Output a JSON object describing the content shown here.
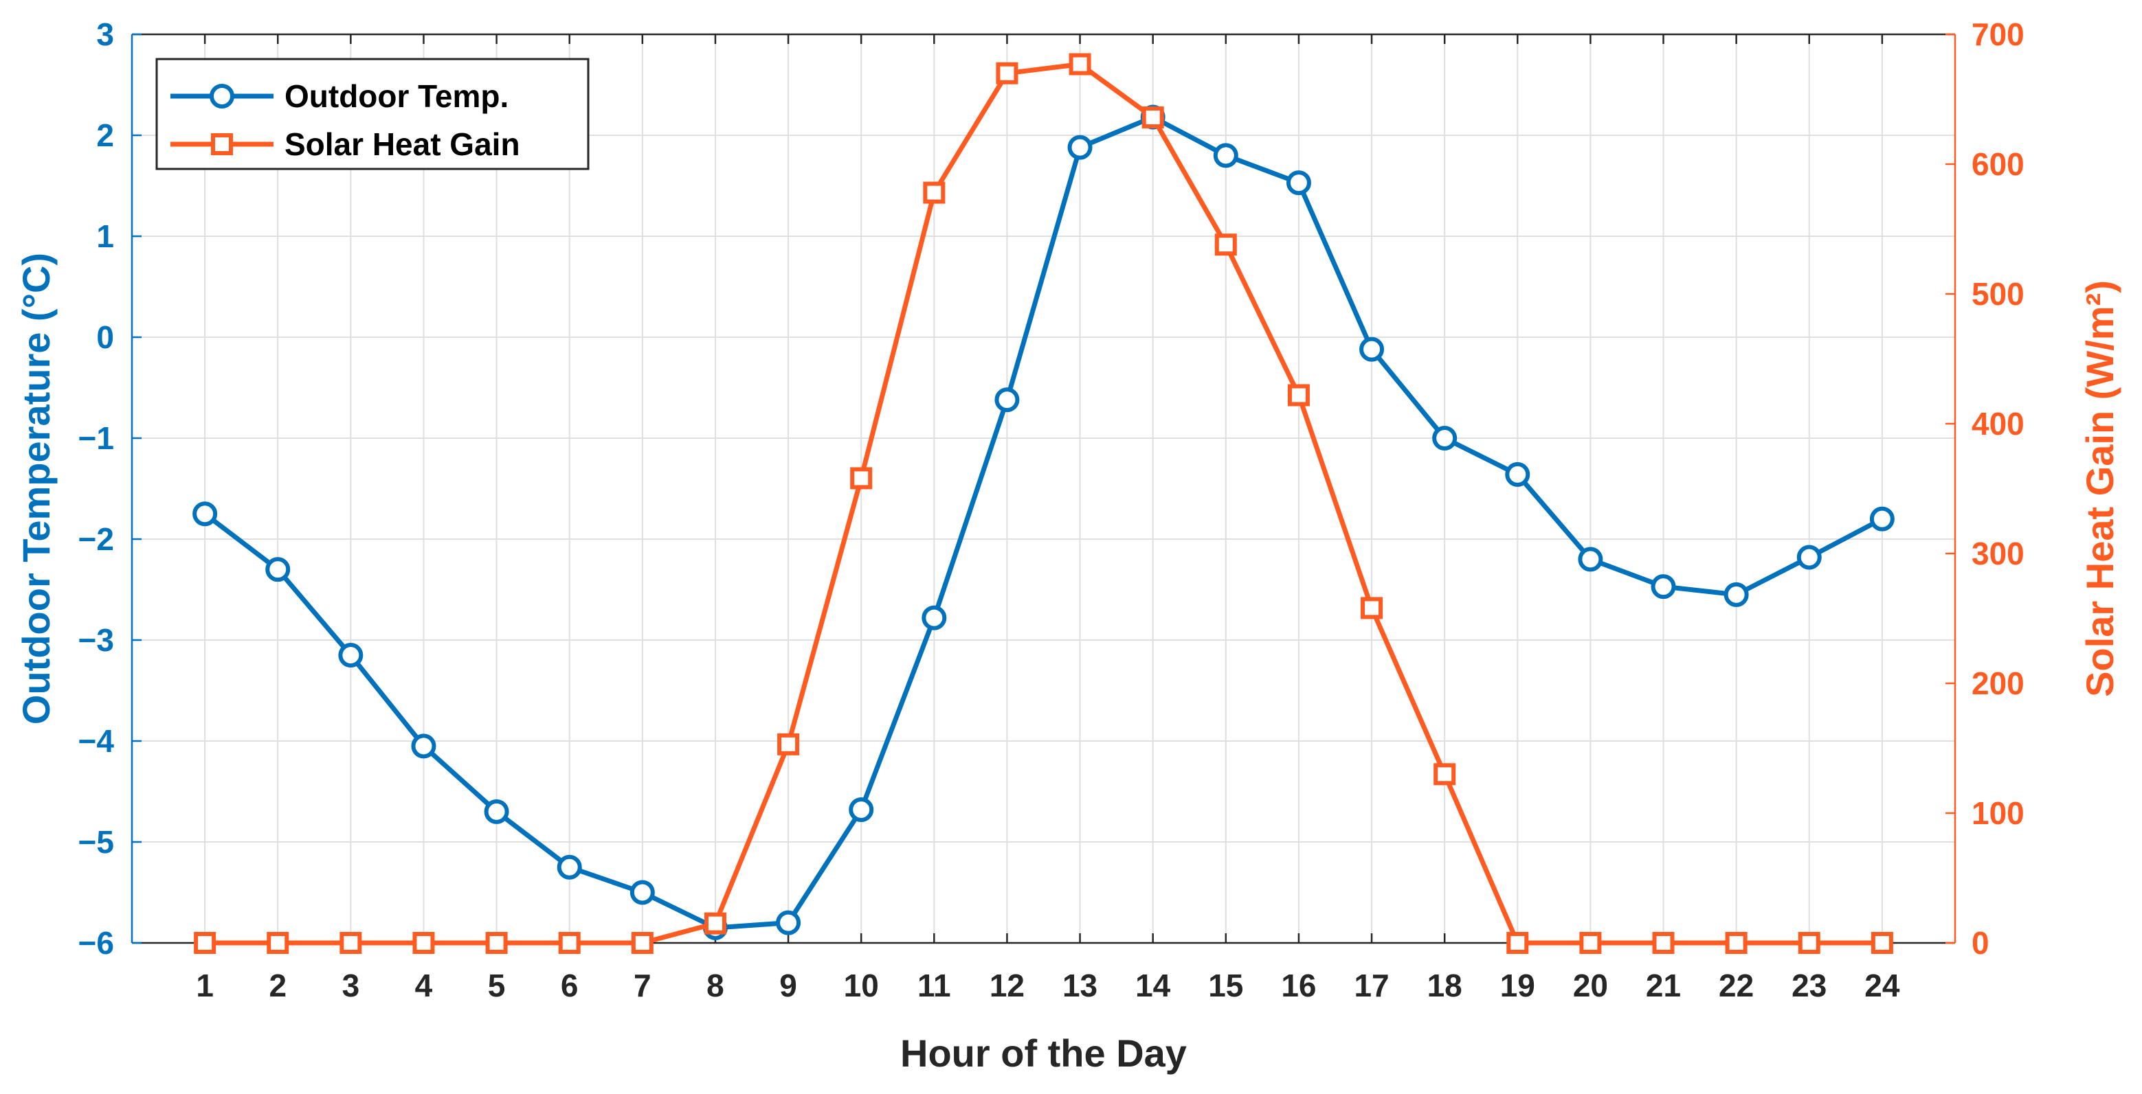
{
  "chart_data": {
    "type": "line",
    "xlabel": "Hour of the Day",
    "x": [
      1,
      2,
      3,
      4,
      5,
      6,
      7,
      8,
      9,
      10,
      11,
      12,
      13,
      14,
      15,
      16,
      17,
      18,
      19,
      20,
      21,
      22,
      23,
      24
    ],
    "xticks": [
      "1",
      "2",
      "3",
      "4",
      "5",
      "6",
      "7",
      "8",
      "9",
      "10",
      "11",
      "12",
      "13",
      "14",
      "15",
      "16",
      "17",
      "18",
      "19",
      "20",
      "21",
      "22",
      "23",
      "24"
    ],
    "xlim": [
      0,
      25
    ],
    "left_axis": {
      "label": "Outdoor Temperature (°C)",
      "ylim": [
        -6,
        3
      ],
      "ticks": [
        "3",
        "2",
        "1",
        "0",
        "−1",
        "−2",
        "−3",
        "−4",
        "−5",
        "−6"
      ],
      "tick_values": [
        3,
        2,
        1,
        0,
        -1,
        -2,
        -3,
        -4,
        -5,
        -6
      ],
      "color": "#0072BD"
    },
    "right_axis": {
      "label": "Solar Heat Gain (W/m²)",
      "ylim": [
        0,
        700
      ],
      "ticks": [
        "700",
        "600",
        "500",
        "400",
        "300",
        "200",
        "100",
        "0"
      ],
      "tick_values": [
        700,
        600,
        500,
        400,
        300,
        200,
        100,
        0
      ],
      "color": "#FF5A1F"
    },
    "series": [
      {
        "name": "Outdoor Temp.",
        "axis": "left",
        "marker": "circle",
        "color": "#0072BD",
        "values": [
          -1.75,
          -2.3,
          -3.15,
          -4.05,
          -4.7,
          -5.25,
          -5.5,
          -5.85,
          -5.8,
          -4.68,
          -2.78,
          -0.62,
          1.88,
          2.18,
          1.8,
          1.53,
          -0.12,
          -1.0,
          -1.36,
          -2.2,
          -2.47,
          -2.55,
          -2.18,
          -1.8
        ]
      },
      {
        "name": "Solar Heat Gain",
        "axis": "right",
        "marker": "square",
        "color": "#FF5A1F",
        "values": [
          0,
          0,
          0,
          0,
          0,
          0,
          0,
          15,
          153,
          358,
          578,
          670,
          677,
          636,
          538,
          422,
          258,
          130,
          0,
          0,
          0,
          0,
          0,
          0
        ]
      }
    ],
    "grid": true,
    "legend_position": "top-left"
  }
}
